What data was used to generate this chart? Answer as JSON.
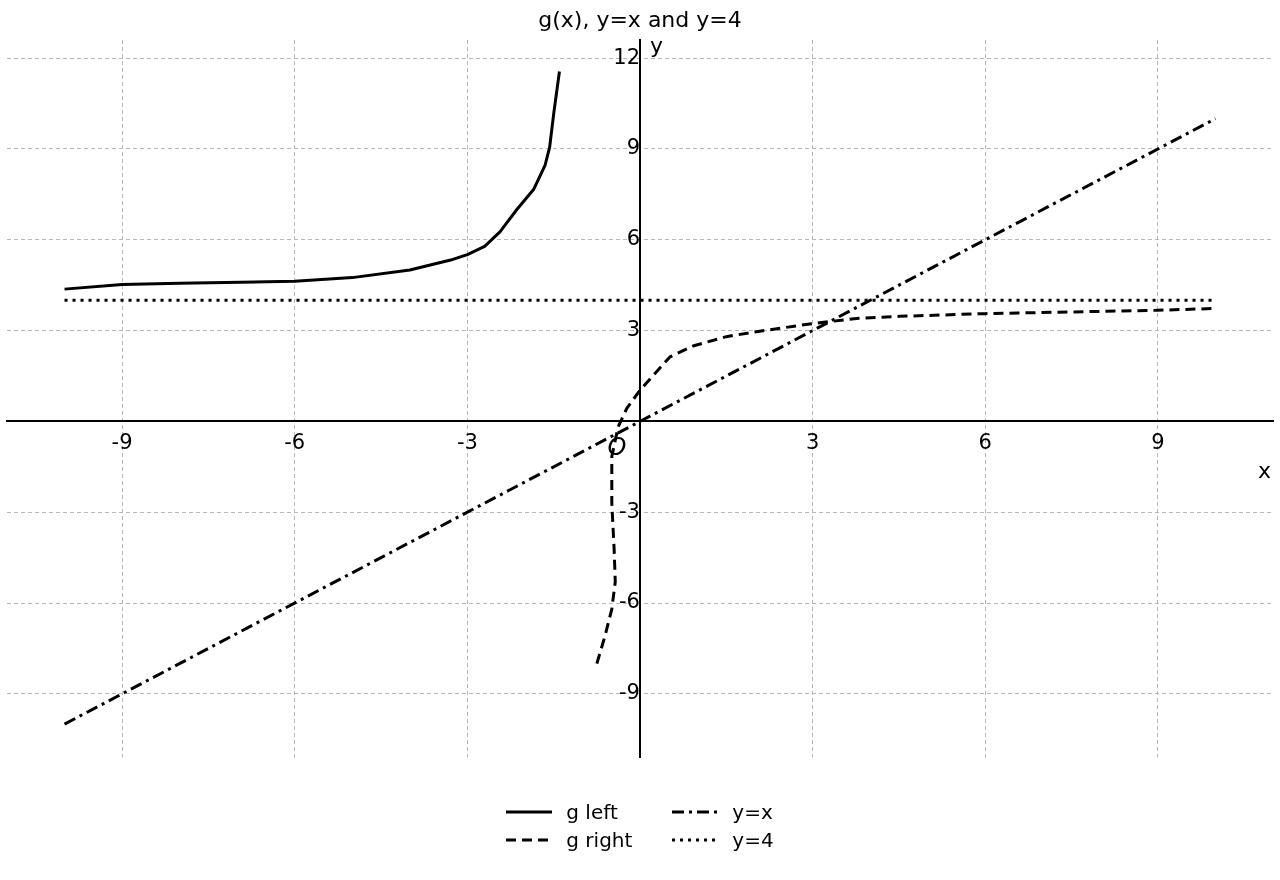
{
  "chart_data": {
    "type": "line",
    "title": "g(x), y=x and y=4",
    "xlabel": "x",
    "ylabel": "y",
    "xlim": [
      -11,
      11
    ],
    "ylim": [
      -11.1,
      12.6
    ],
    "xticks": [
      -9,
      -6,
      -3,
      3,
      6,
      9
    ],
    "yticks": [
      -9,
      -6,
      -3,
      3,
      6,
      9,
      12
    ],
    "grid": true,
    "legend": "bottom",
    "marker": "none",
    "annotations": [
      {
        "text": "O",
        "x": -0.4,
        "y": -0.9
      }
    ],
    "series": [
      {
        "name": "g left",
        "color": "#000000",
        "line_style": "solid",
        "x": [
          -10,
          -9,
          -8,
          -6,
          -5,
          -4,
          -3.29,
          -3,
          -2.7,
          -2.43,
          -2.14,
          -1.85,
          -1.65,
          -1.57,
          -1.5,
          -1.4
        ],
        "values": [
          4.37,
          4.52,
          4.56,
          4.63,
          4.75,
          5.0,
          5.33,
          5.51,
          5.78,
          6.27,
          7.0,
          7.66,
          8.46,
          9.06,
          10.16,
          11.56
        ]
      },
      {
        "name": "g right",
        "color": "#000000",
        "line_style": "dashed",
        "x": [
          -0.75,
          -0.61,
          -0.49,
          -0.43,
          -0.45,
          -0.49,
          -0.49,
          -0.49,
          -0.38,
          -0.23,
          0,
          0.23,
          0.52,
          0.92,
          1.5,
          2.08,
          2.95,
          3.76,
          4.51,
          5.98,
          8.98,
          9.97
        ],
        "values": [
          -8.0,
          -7.1,
          -6.2,
          -5.3,
          -4.2,
          -2.7,
          -1.6,
          -1.16,
          -0.18,
          0.43,
          1.03,
          1.52,
          2.13,
          2.49,
          2.8,
          2.98,
          3.22,
          3.4,
          3.47,
          3.56,
          3.67,
          3.73
        ]
      },
      {
        "name": "y=x",
        "color": "#000000",
        "line_style": "dashdot",
        "x": [
          -10,
          10
        ],
        "values": [
          -10,
          10
        ]
      },
      {
        "name": "y=4",
        "color": "#000000",
        "line_style": "dotted",
        "x": [
          -10,
          10
        ],
        "values": [
          4,
          4
        ]
      }
    ]
  }
}
